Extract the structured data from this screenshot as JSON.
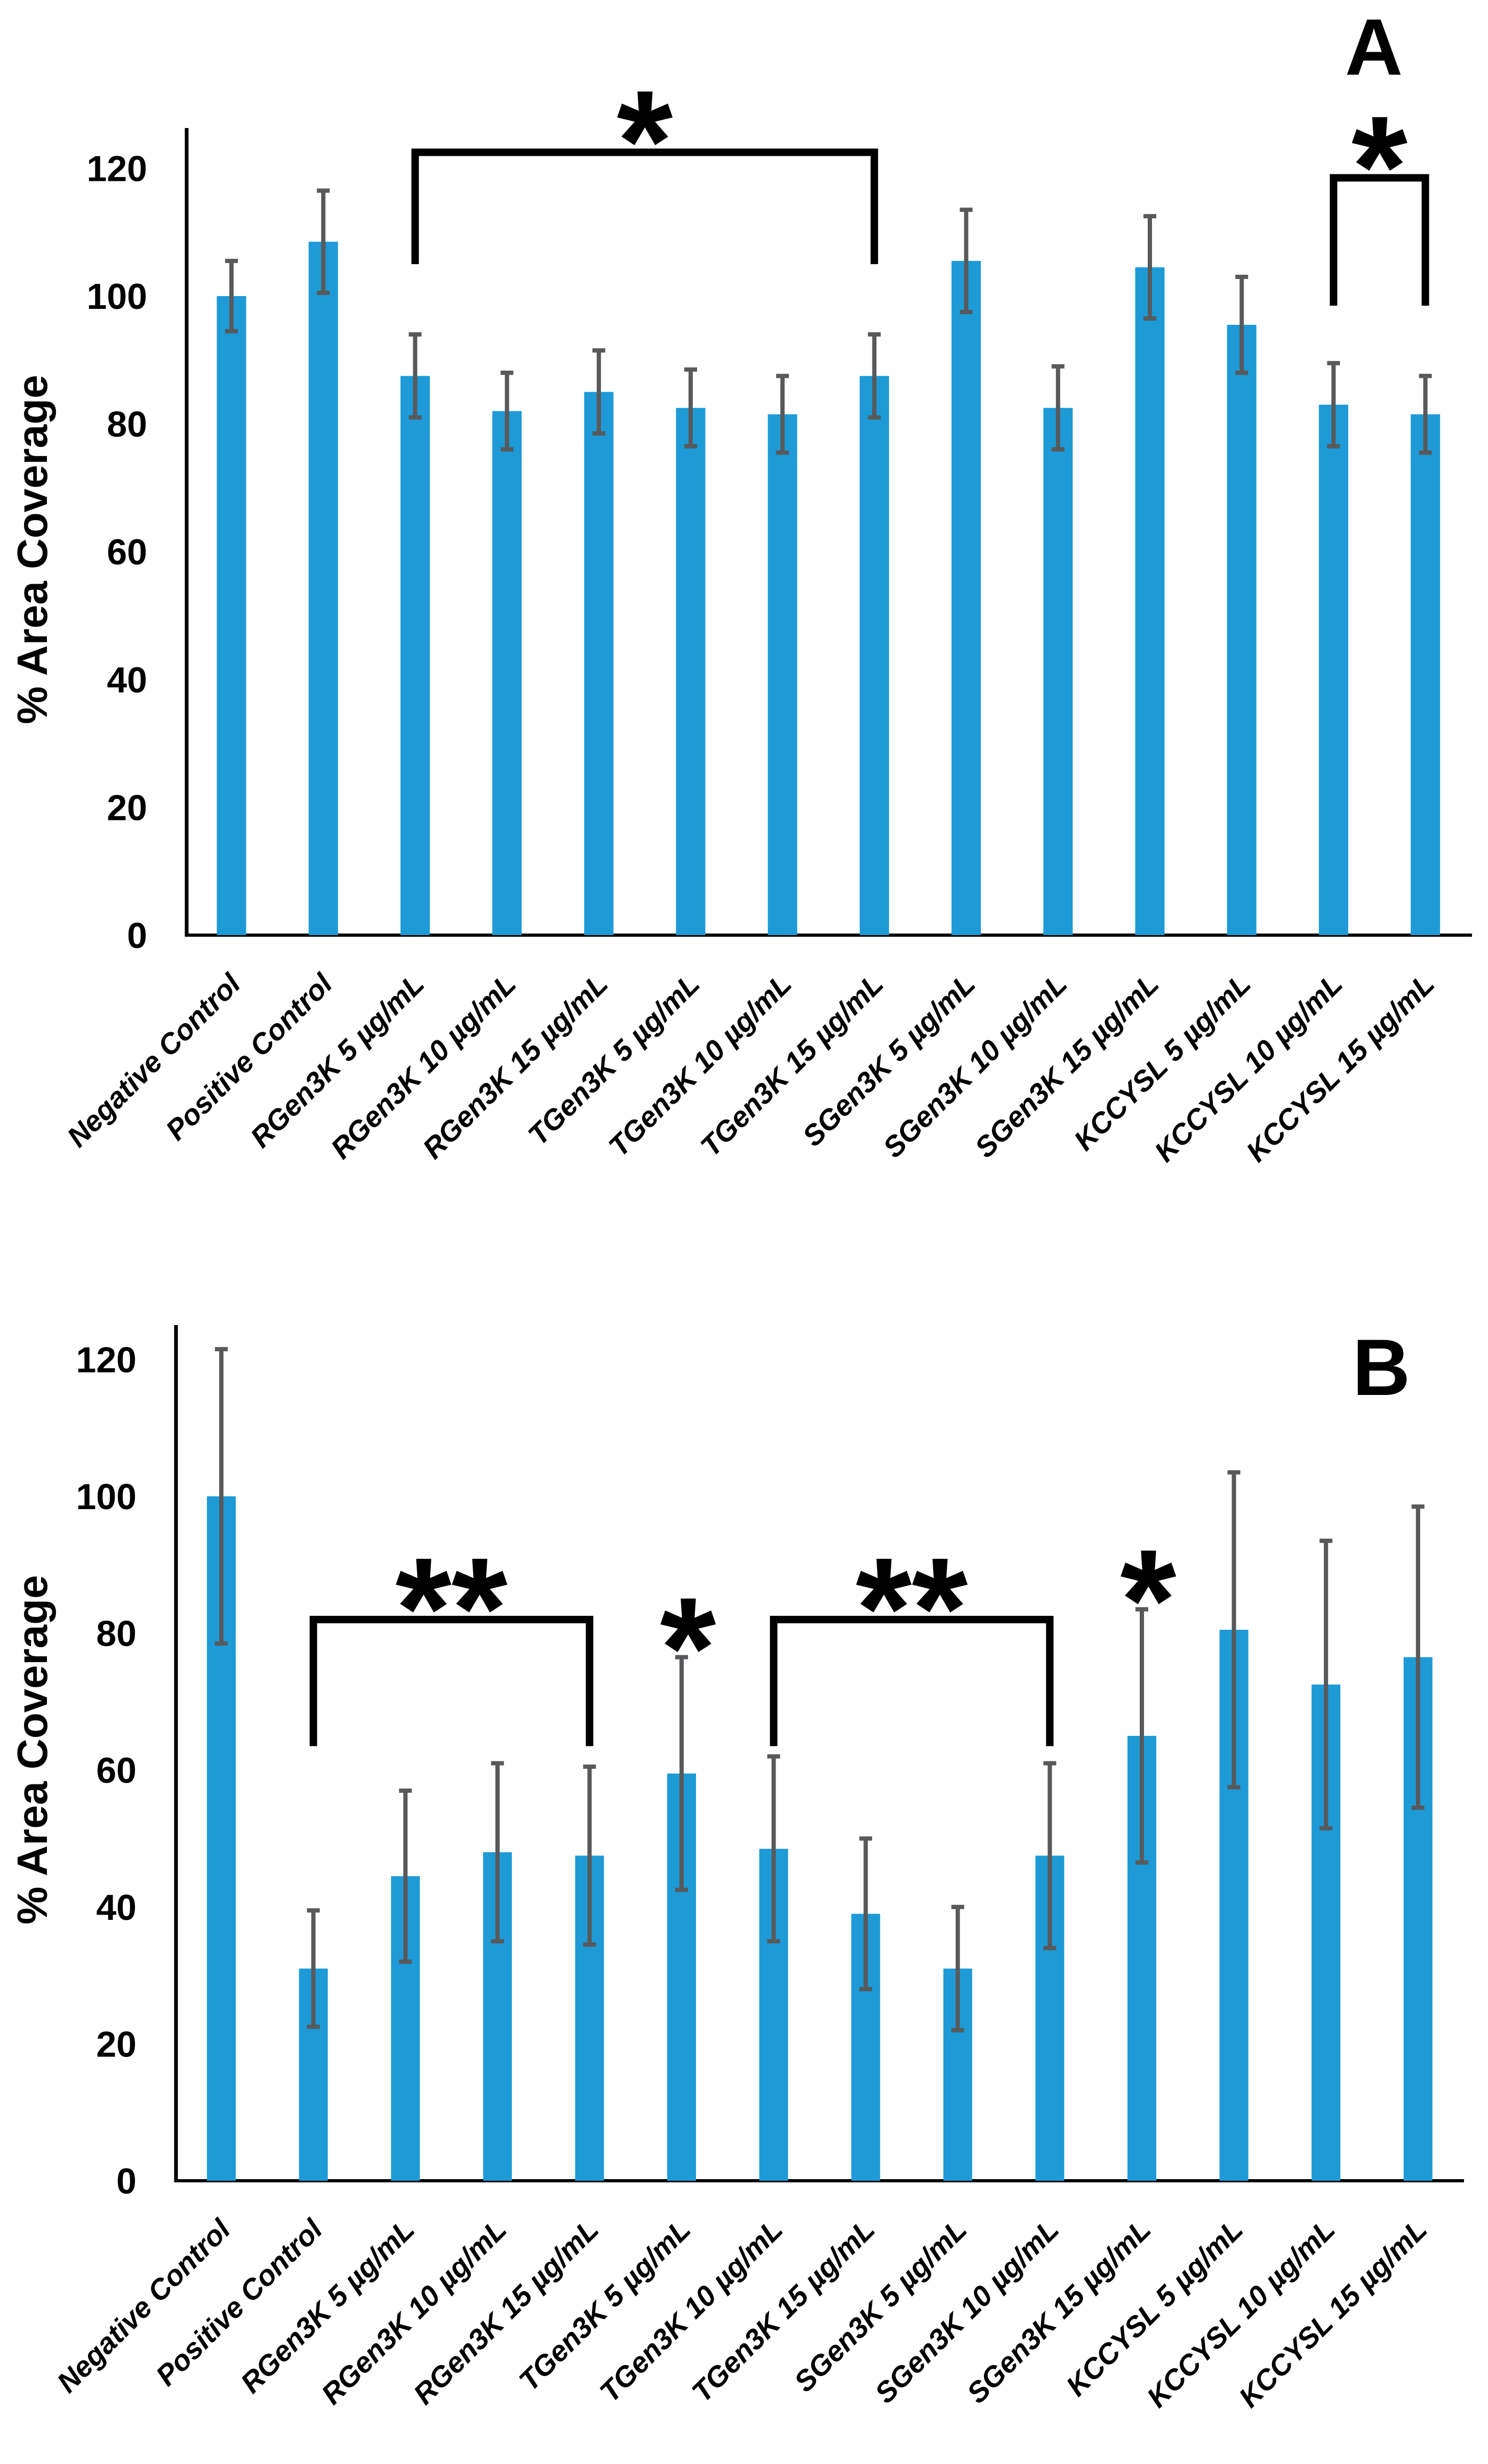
{
  "page": {
    "background": "#FFFFFF"
  },
  "style": {
    "bar_color": "#1E9AD6",
    "error_bar_color": "#58595B",
    "axis_color": "#000000",
    "text_color": "#000000"
  },
  "chart_data": [
    {
      "panel": "A",
      "type": "bar",
      "title": "",
      "xlabel": "",
      "ylabel": "% Area Coverage",
      "ylim": [
        0,
        120
      ],
      "yticks": [
        0,
        20,
        40,
        60,
        80,
        100,
        120
      ],
      "grid": false,
      "legend": null,
      "categories": [
        "Negative Control",
        "Positive Control",
        "RGen3K 5 µg/mL",
        "RGen3K 10 µg/mL",
        "RGen3K 15 µg/mL",
        "TGen3K 5 µg/mL",
        "TGen3K 10 µg/mL",
        "TGen3K 15 µg/mL",
        "SGen3K 5 µg/mL",
        "SGen3K 10 µg/mL",
        "SGen3K 15 µg/mL",
        "KCCYSL 5 µg/mL",
        "KCCYSL 10 µg/mL",
        "KCCYSL 15 µg/mL"
      ],
      "values": [
        100,
        108.5,
        87.5,
        82,
        85,
        82.5,
        81.5,
        87.5,
        105.5,
        82.5,
        104.5,
        95.5,
        83,
        81.5
      ],
      "errors": [
        5.5,
        8,
        6.5,
        6,
        6.5,
        6,
        6,
        6.5,
        8,
        6.5,
        8,
        7.5,
        6.5,
        6
      ],
      "significance_brackets": [
        {
          "from_index": 2,
          "from_category": "RGen3K 5 µg/mL",
          "to_index": 7,
          "to_category": "TGen3K 15 µg/mL",
          "label": "*",
          "bar_top_value": 122.5,
          "leg_bottom_value": 105
        },
        {
          "from_index": 12,
          "from_category": "KCCYSL 10 µg/mL",
          "to_index": 13,
          "to_category": "KCCYSL 15 µg/mL",
          "label": "*",
          "bar_top_value": 118.5,
          "leg_bottom_value": 98.5
        }
      ],
      "significance_stars": []
    },
    {
      "panel": "B",
      "type": "bar",
      "title": "",
      "xlabel": "",
      "ylabel": "% Area Coverage",
      "ylim": [
        0,
        120
      ],
      "yticks": [
        0,
        20,
        40,
        60,
        80,
        100,
        120
      ],
      "grid": false,
      "legend": null,
      "categories": [
        "Negative Control",
        "Positive Control",
        "RGen3K 5 µg/mL",
        "RGen3K 10 µg/mL",
        "RGen3K 15 µg/mL",
        "TGen3K 5 µg/mL",
        "TGen3K 10 µg/mL",
        "TGen3K 15 µg/mL",
        "SGen3K 5 µg/mL",
        "SGen3K 10 µg/mL",
        "SGen3K 15 µg/mL",
        "KCCYSL 5 µg/mL",
        "KCCYSL 10 µg/mL",
        "KCCYSL 15 µg/mL"
      ],
      "values": [
        100,
        31,
        44.5,
        48,
        47.5,
        59.5,
        48.5,
        39,
        31,
        47.5,
        65,
        80.5,
        72.5,
        76.5
      ],
      "errors": [
        21.5,
        8.5,
        12.5,
        13,
        13,
        17,
        13.5,
        11,
        9,
        13.5,
        18.5,
        23,
        21,
        22
      ],
      "significance_brackets": [
        {
          "from_index": 1,
          "from_category": "Positive Control",
          "to_index": 4,
          "to_category": "RGen3K 15 µg/mL",
          "label": "**",
          "bar_top_value": 82,
          "leg_bottom_value": 63.5
        },
        {
          "from_index": 6,
          "from_category": "TGen3K 10 µg/mL",
          "to_index": 9,
          "to_category": "SGen3K 10 µg/mL",
          "label": "**",
          "bar_top_value": 82,
          "leg_bottom_value": 63.5
        }
      ],
      "significance_stars": [
        {
          "index": 5,
          "category": "TGen3K 5 µg/mL",
          "label": "*",
          "center_value": 81.5
        },
        {
          "index": 10,
          "category": "SGen3K 15 µg/mL",
          "label": "*",
          "center_value": 88.5
        }
      ]
    }
  ]
}
